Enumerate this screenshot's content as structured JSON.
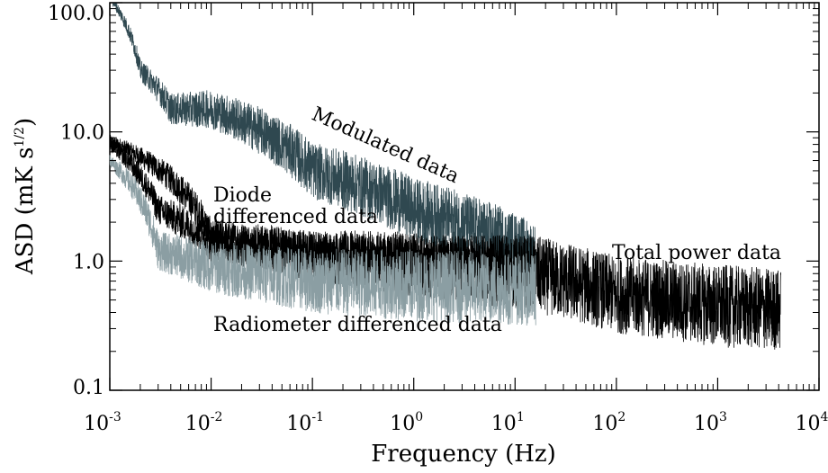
{
  "chart_data": {
    "type": "line",
    "xscale": "log",
    "yscale": "log",
    "xlabel": "Frequency (Hz)",
    "ylabel_prefix": "ASD (mK s",
    "ylabel_sup": "1/2",
    "ylabel_suffix": ")",
    "xlim": [
      0.001,
      10000
    ],
    "ylim": [
      0.1,
      100
    ],
    "x_ticks": [
      {
        "value": 0.001,
        "base": "10",
        "exp": "-3"
      },
      {
        "value": 0.01,
        "base": "10",
        "exp": "-2"
      },
      {
        "value": 0.1,
        "base": "10",
        "exp": "-1"
      },
      {
        "value": 1,
        "base": "10",
        "exp": "0"
      },
      {
        "value": 10,
        "base": "10",
        "exp": "1"
      },
      {
        "value": 100,
        "base": "10",
        "exp": "2"
      },
      {
        "value": 1000,
        "base": "10",
        "exp": "3"
      },
      {
        "value": 10000,
        "base": "10",
        "exp": "4"
      }
    ],
    "y_ticks": [
      {
        "value": 0.1,
        "label": "0.1"
      },
      {
        "value": 1,
        "label": "1.0"
      },
      {
        "value": 10,
        "label": "10.0"
      },
      {
        "value": 100,
        "label": "100.0"
      }
    ],
    "series": [
      {
        "name": "Total power data",
        "color": "#000000",
        "x": [
          0.001,
          0.01,
          0.1,
          1,
          10,
          100,
          1000,
          4200
        ],
        "y": [
          8.5,
          1.5,
          1.1,
          0.95,
          0.85,
          0.55,
          0.45,
          0.42
        ],
        "scatter": [
          0.05,
          0.15,
          0.2,
          0.25,
          0.3,
          0.3,
          0.32,
          0.32
        ]
      },
      {
        "name": "Modulated data",
        "color": "#2f4850",
        "x": [
          0.001,
          0.002,
          0.004,
          0.01,
          0.05,
          0.1,
          1,
          16
        ],
        "y": [
          110,
          30,
          15,
          15,
          8,
          5,
          2.5,
          1.1
        ],
        "scatter": [
          0.03,
          0.08,
          0.12,
          0.15,
          0.2,
          0.22,
          0.25,
          0.25
        ]
      },
      {
        "name": "Diode differenced data",
        "color": "#000000",
        "x": [
          0.001,
          0.003,
          0.01,
          0.1,
          1,
          16
        ],
        "y": [
          8.0,
          2.5,
          1.4,
          1.1,
          1.0,
          1.0
        ],
        "scatter": [
          0.05,
          0.12,
          0.15,
          0.18,
          0.2,
          0.2
        ]
      },
      {
        "name": "Radiometer differenced data",
        "color": "#8b9ea3",
        "x": [
          0.001,
          0.003,
          0.01,
          0.1,
          1,
          16
        ],
        "y": [
          6.0,
          1.2,
          0.9,
          0.7,
          0.65,
          0.6
        ],
        "scatter": [
          0.05,
          0.15,
          0.2,
          0.25,
          0.28,
          0.28
        ]
      }
    ],
    "annotations": [
      {
        "id": "modulated",
        "text": "Modulated data"
      },
      {
        "id": "diode1",
        "text": "Diode"
      },
      {
        "id": "diode2",
        "text": "differenced data"
      },
      {
        "id": "total",
        "text": "Total power data"
      },
      {
        "id": "radiometer",
        "text": "Radiometer differenced data"
      }
    ]
  }
}
